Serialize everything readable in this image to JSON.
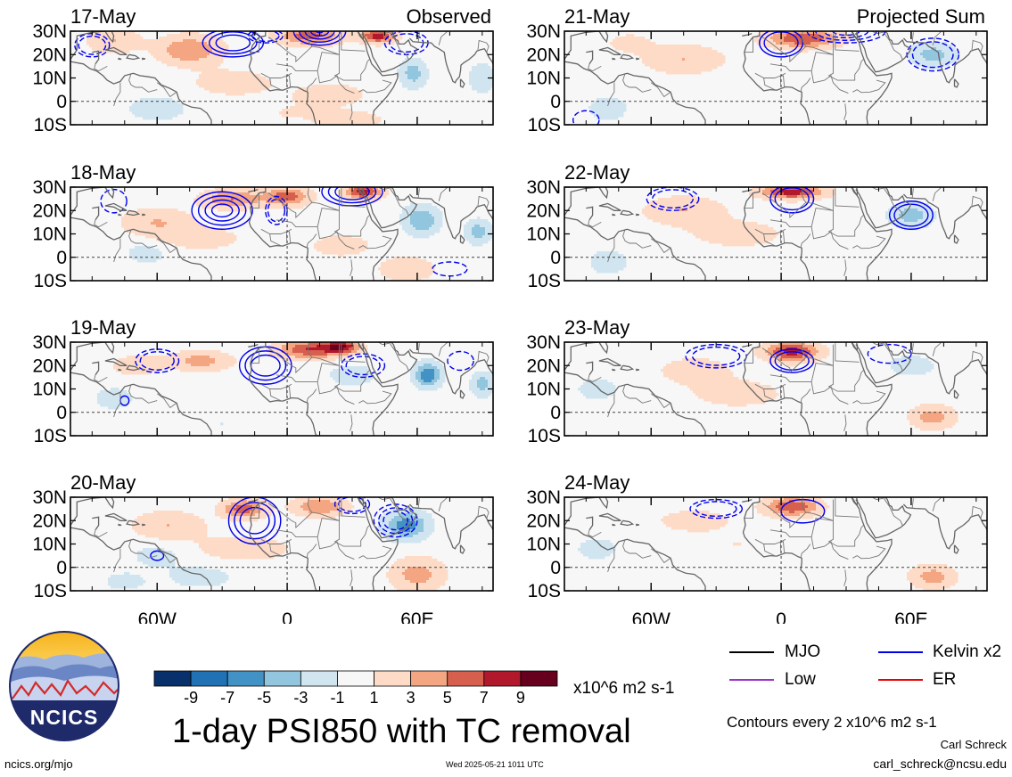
{
  "chart_data": {
    "type": "heatmap",
    "title": "1-day PSI850 with TC removal",
    "variable": "PSI850",
    "units": "x10^6 m2 s-1",
    "contour_note": "Contours every 2 x10^6 m2 s-1",
    "columns": [
      {
        "label": "Observed",
        "dates": [
          "17-May",
          "18-May",
          "19-May",
          "20-May"
        ]
      },
      {
        "label": "Projected Sum",
        "dates": [
          "21-May",
          "22-May",
          "23-May",
          "24-May"
        ]
      }
    ],
    "lon_range": [
      -100,
      95
    ],
    "lat_range": [
      -10,
      30
    ],
    "x_ticks": [
      {
        "lon": -60,
        "label": "60W"
      },
      {
        "lon": 0,
        "label": "0"
      },
      {
        "lon": 60,
        "label": "60E"
      }
    ],
    "y_ticks": [
      {
        "lat": 30,
        "label": "30N"
      },
      {
        "lat": 20,
        "label": "20N"
      },
      {
        "lat": 10,
        "label": "10N"
      },
      {
        "lat": 0,
        "label": "0"
      },
      {
        "lat": -10,
        "label": "10S"
      }
    ],
    "colorbar": {
      "levels": [
        -9,
        -7,
        -5,
        -3,
        -1,
        1,
        3,
        5,
        7,
        9
      ],
      "level_labels": [
        "-9",
        "-7",
        "-5",
        "-3",
        "-1",
        "1",
        "3",
        "5",
        "7",
        "9"
      ],
      "colors": [
        "#08306b",
        "#2171b5",
        "#4292c6",
        "#92c5de",
        "#d1e5f0",
        "#f7f7f7",
        "#fddbc7",
        "#f4a582",
        "#d6604d",
        "#b2182b",
        "#67001f"
      ]
    },
    "legend": [
      {
        "name": "MJO",
        "color": "#000000"
      },
      {
        "name": "Kelvin x2",
        "color": "#0000ee"
      },
      {
        "name": "Low",
        "color": "#9933cc"
      },
      {
        "name": "ER",
        "color": "#ee0000"
      }
    ]
  },
  "footer": {
    "logo_text": "NCICS",
    "url": "ncics.org/mjo",
    "timestamp": "Wed 2025-05-21 1011 UTC",
    "author": "Carl Schreck",
    "email": "carl_schreck@ncsu.edu"
  }
}
